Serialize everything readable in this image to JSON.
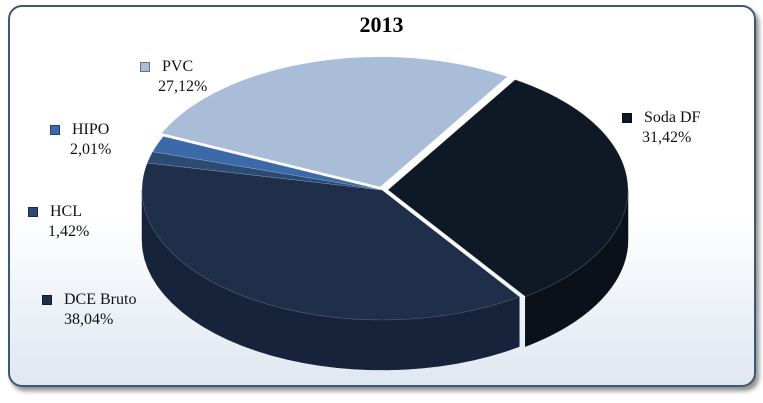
{
  "chart_data": {
    "type": "pie",
    "title": "2013",
    "slices": [
      {
        "label": "Soda DF",
        "value": 31.42,
        "display": "31,42%",
        "color": "#0f1926",
        "side": "#0a111b"
      },
      {
        "label": "DCE Bruto",
        "value": 38.04,
        "display": "38,04%",
        "color": "#1f2f49",
        "side": "#16233a"
      },
      {
        "label": "HCL",
        "value": 1.42,
        "display": "1,42%",
        "color": "#2b4a74",
        "side": "#1f3654"
      },
      {
        "label": "HIPO",
        "value": 2.01,
        "display": "2,01%",
        "color": "#3c6aa8",
        "side": "#2c4f7f"
      },
      {
        "label": "PVC",
        "value": 27.12,
        "display": "27,12%",
        "color": "#a9bcd8",
        "side": "#8798b0"
      }
    ],
    "legend_placement": "labels outside slices",
    "style": "3d-exploded"
  }
}
